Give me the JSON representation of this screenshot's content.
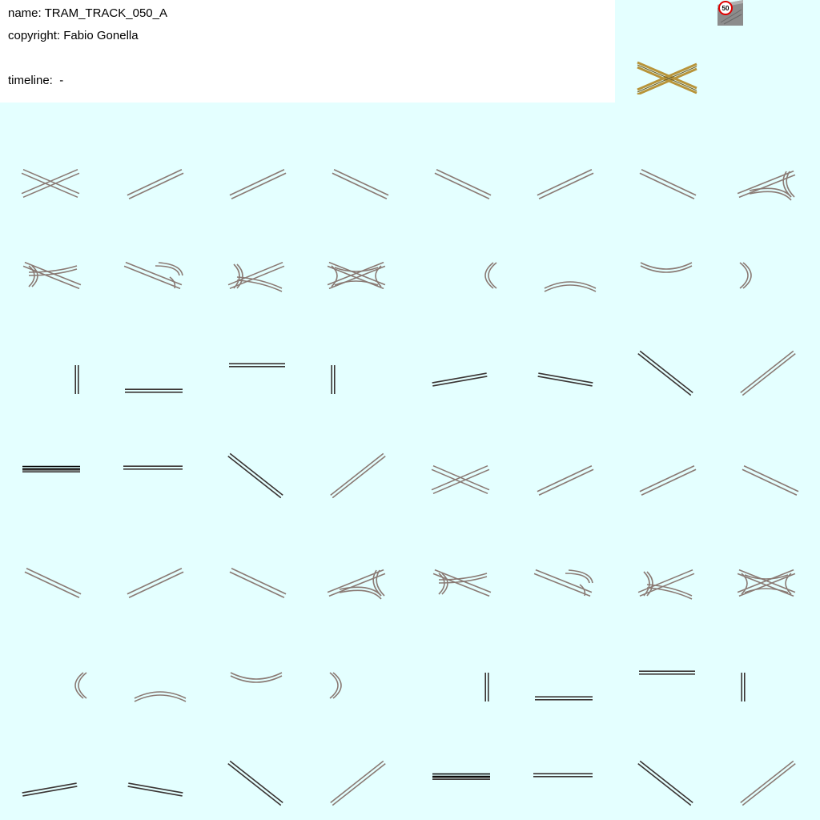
{
  "header": {
    "name_label": "name: TRAM_TRACK_050_A",
    "copyright_label": "copyright: Fabio Gonella",
    "timeline_label": "timeline:  -"
  },
  "sign": {
    "speed_limit": "50",
    "icon": "speed-limit-sign-icon"
  },
  "colors": {
    "background": "#e4ffff",
    "panel": "#ffffff",
    "rail": "#8a7a74",
    "rail_dark": "#3a3433",
    "icon_rail": "#b8943a"
  },
  "tiles": [
    "cross",
    "ne",
    "ne",
    "nw",
    "nw",
    "ne",
    "nw",
    "fan-left",
    "fan-right",
    "fan-left-down",
    "fan-up",
    "star",
    "curve-w",
    "curve-s",
    "curve-n",
    "curve-e",
    "v-right",
    "h-bottom",
    "h-top",
    "v-left",
    "shallow-up",
    "shallow-down",
    "steep-nw",
    "steep-ne",
    "h-double",
    "h-bottom-mid",
    "steep-nw",
    "steep-ne",
    "cross",
    "ne",
    "ne",
    "nw",
    "nw",
    "ne",
    "nw",
    "fan-left",
    "fan-right",
    "fan-left-down",
    "fan-up",
    "star",
    "curve-w",
    "curve-s",
    "curve-n",
    "curve-e",
    "v-right",
    "h-bottom",
    "h-top",
    "v-left",
    "shallow-up",
    "shallow-down",
    "steep-nw",
    "steep-ne",
    "h-double",
    "h-bottom-mid",
    "steep-nw",
    "steep-ne"
  ]
}
